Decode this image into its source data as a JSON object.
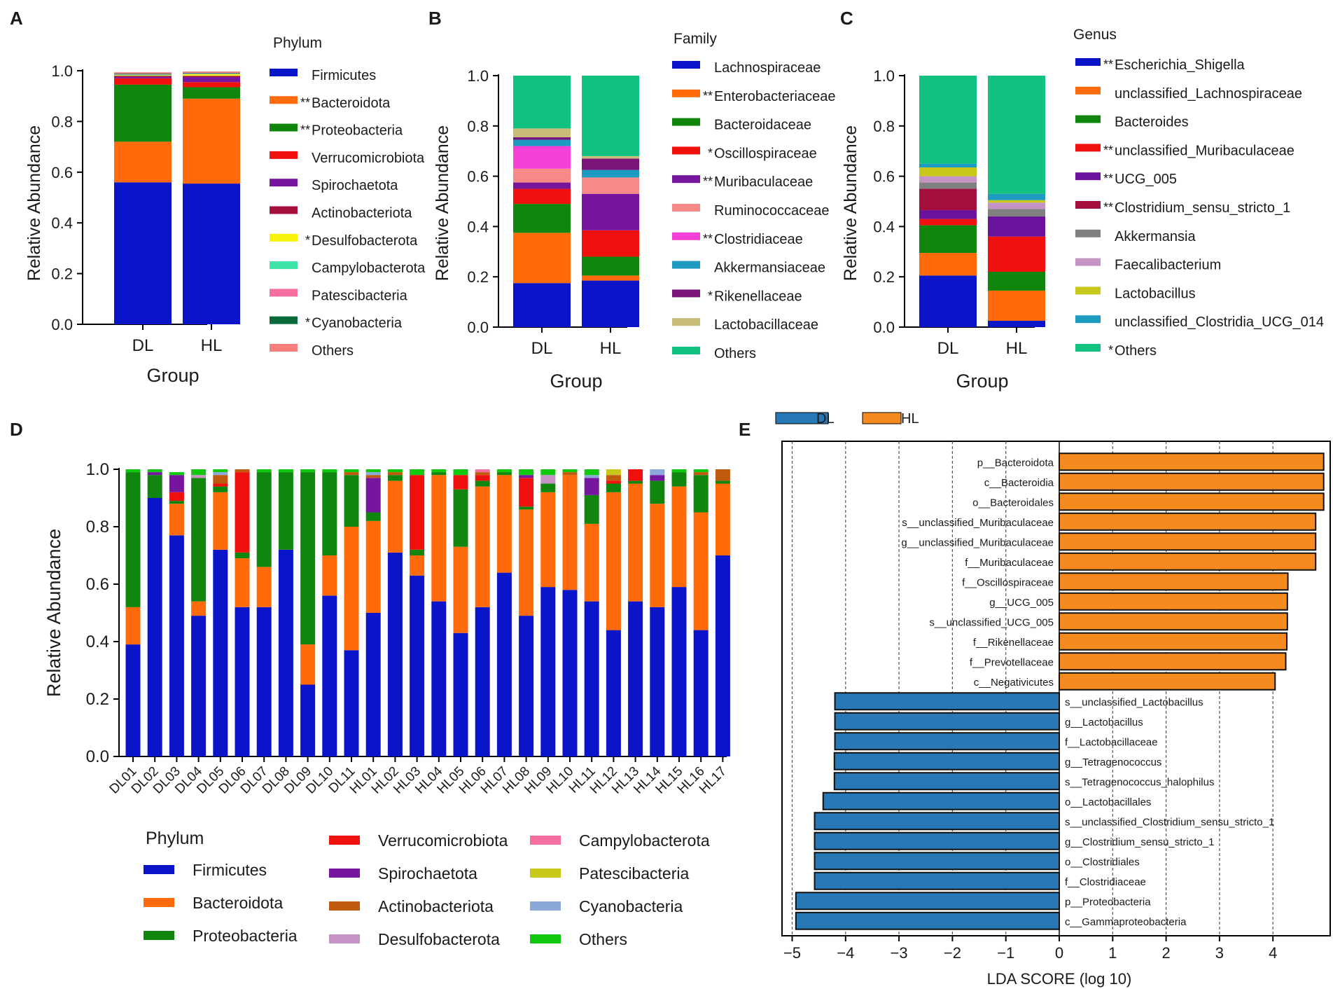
{
  "panels": {
    "A": {
      "letter": "A",
      "legend_title": "Phylum",
      "ylabel": "Relative Abundance",
      "xlabel": "Group"
    },
    "B": {
      "letter": "B",
      "legend_title": "Family",
      "ylabel": "Relative Abundance",
      "xlabel": "Group"
    },
    "C": {
      "letter": "C",
      "legend_title": "Genus",
      "ylabel": "Relative Abundance",
      "xlabel": "Group"
    },
    "D": {
      "letter": "D",
      "legend_title": "Phylum",
      "ylabel": "Relative Abundance"
    },
    "E": {
      "letter": "E",
      "legend": [
        {
          "name": "DL",
          "color": "#2878b5"
        },
        {
          "name": "HL",
          "color": "#f58a1f"
        }
      ],
      "xlabel": "LDA SCORE (log 10)"
    }
  },
  "chart_data": [
    {
      "id": "A",
      "type": "bar",
      "stacked": true,
      "categories": [
        "DL",
        "HL"
      ],
      "ylim": [
        0,
        1.0
      ],
      "yticks": [
        "0.0",
        "0.2",
        "0.4",
        "0.6",
        "0.8",
        "1.0"
      ],
      "series": [
        {
          "name": "Firmicutes",
          "marker": "",
          "color": "#0a14c8",
          "values": [
            0.56,
            0.555
          ]
        },
        {
          "name": "Bacteroidota",
          "marker": "**",
          "color": "#ff6a0a",
          "values": [
            0.16,
            0.335
          ]
        },
        {
          "name": "Proteobacteria",
          "marker": "**",
          "color": "#10860f",
          "values": [
            0.225,
            0.045
          ]
        },
        {
          "name": "Verrucomicrobiota",
          "marker": "",
          "color": "#f0100e",
          "values": [
            0.025,
            0.02
          ]
        },
        {
          "name": "Spirochaetota",
          "marker": "",
          "color": "#76169e",
          "values": [
            0.005,
            0.02
          ]
        },
        {
          "name": "Actinobacteriota",
          "marker": "",
          "color": "#a50f3c",
          "values": [
            0.005,
            0.005
          ]
        },
        {
          "name": "Desulfobacterota",
          "marker": "*",
          "color": "#f7f20a",
          "values": [
            0.002,
            0.006
          ]
        },
        {
          "name": "Campylobacterota",
          "marker": "",
          "color": "#3ee3a8",
          "values": [
            0.003,
            0.002
          ]
        },
        {
          "name": "Patescibacteria",
          "marker": "",
          "color": "#f76ea0",
          "values": [
            0.002,
            0.002
          ]
        },
        {
          "name": "Cyanobacteria",
          "marker": "*",
          "color": "#0a6b3a",
          "values": [
            0.002,
            0.002
          ]
        },
        {
          "name": "Others",
          "marker": "",
          "color": "#f57f7d",
          "values": [
            0.005,
            0.005
          ]
        }
      ]
    },
    {
      "id": "B",
      "type": "bar",
      "stacked": true,
      "categories": [
        "DL",
        "HL"
      ],
      "ylim": [
        0,
        1.0
      ],
      "yticks": [
        "0.0",
        "0.2",
        "0.4",
        "0.6",
        "0.8",
        "1.0"
      ],
      "series": [
        {
          "name": "Lachnospiraceae",
          "marker": "",
          "color": "#0a14c8",
          "values": [
            0.175,
            0.185
          ]
        },
        {
          "name": "Enterobacteriaceae",
          "marker": "**",
          "color": "#ff6a0a",
          "values": [
            0.2,
            0.02
          ]
        },
        {
          "name": "Bacteroidaceae",
          "marker": "",
          "color": "#10860f",
          "values": [
            0.115,
            0.075
          ]
        },
        {
          "name": "Oscillospiraceae",
          "marker": "*",
          "color": "#f0100e",
          "values": [
            0.06,
            0.105
          ]
        },
        {
          "name": "Muribaculaceae",
          "marker": "**",
          "color": "#76169e",
          "values": [
            0.025,
            0.145
          ]
        },
        {
          "name": "Ruminococcaceae",
          "marker": "",
          "color": "#f78a87",
          "values": [
            0.055,
            0.065
          ]
        },
        {
          "name": "Clostridiaceae",
          "marker": "**",
          "color": "#f540d8",
          "values": [
            0.09,
            0.0
          ]
        },
        {
          "name": "Akkermansiaceae",
          "marker": "",
          "color": "#1e9bc0",
          "values": [
            0.025,
            0.03
          ]
        },
        {
          "name": "Rikenellaceae",
          "marker": "*",
          "color": "#7a157a",
          "values": [
            0.01,
            0.045
          ]
        },
        {
          "name": "Lactobacillaceae",
          "marker": "",
          "color": "#c7bc78",
          "values": [
            0.035,
            0.01
          ]
        },
        {
          "name": "Others",
          "marker": "",
          "color": "#12c080",
          "values": [
            0.21,
            0.32
          ]
        }
      ]
    },
    {
      "id": "C",
      "type": "bar",
      "stacked": true,
      "categories": [
        "DL",
        "HL"
      ],
      "ylim": [
        0,
        1.0
      ],
      "yticks": [
        "0.0",
        "0.2",
        "0.4",
        "0.6",
        "0.8",
        "1.0"
      ],
      "series": [
        {
          "name": "Escherichia_Shigella",
          "marker": "**",
          "color": "#0a14c8",
          "values": [
            0.205,
            0.025
          ]
        },
        {
          "name": "unclassified_Lachnospiraceae",
          "marker": "",
          "color": "#ff6a0a",
          "values": [
            0.09,
            0.12
          ]
        },
        {
          "name": "Bacteroides",
          "marker": "",
          "color": "#10860f",
          "values": [
            0.11,
            0.075
          ]
        },
        {
          "name": "unclassified_Muribaculaceae",
          "marker": "**",
          "color": "#f0100e",
          "values": [
            0.025,
            0.14
          ]
        },
        {
          "name": "UCG_005",
          "marker": "**",
          "color": "#6a129e",
          "values": [
            0.035,
            0.08
          ]
        },
        {
          "name": "Clostridium_sensu_stricto_1",
          "marker": "**",
          "color": "#a50f3c",
          "values": [
            0.085,
            0.0
          ]
        },
        {
          "name": "Akkermansia",
          "marker": "",
          "color": "#808080",
          "values": [
            0.025,
            0.03
          ]
        },
        {
          "name": "Faecalibacterium",
          "marker": "",
          "color": "#c594c5",
          "values": [
            0.025,
            0.025
          ]
        },
        {
          "name": "Lactobacillus",
          "marker": "",
          "color": "#c8c81a",
          "values": [
            0.035,
            0.01
          ]
        },
        {
          "name": "unclassified_Clostridia_UCG_014",
          "marker": "",
          "color": "#1e9bc0",
          "values": [
            0.015,
            0.025
          ]
        },
        {
          "name": "Others",
          "marker": "*",
          "color": "#12c080",
          "values": [
            0.35,
            0.47
          ]
        }
      ]
    },
    {
      "id": "D",
      "type": "bar",
      "stacked": true,
      "categories": [
        "DL01",
        "DL02",
        "DL03",
        "DL04",
        "DL05",
        "DL06",
        "DL07",
        "DL08",
        "DL09",
        "DL10",
        "DL11",
        "HL01",
        "HL02",
        "HL03",
        "HL04",
        "HL05",
        "HL06",
        "HL07",
        "HL08",
        "HL09",
        "HL10",
        "HL11",
        "HL12",
        "HL13",
        "HL14",
        "HL15",
        "HL16",
        "HL17"
      ],
      "ylim": [
        0,
        1.0
      ],
      "yticks": [
        "0.0",
        "0.2",
        "0.4",
        "0.6",
        "0.8",
        "1.0"
      ],
      "series": [
        {
          "name": "Firmicutes",
          "color": "#0a14c8",
          "values": [
            0.39,
            0.9,
            0.77,
            0.49,
            0.72,
            0.52,
            0.52,
            0.72,
            0.25,
            0.56,
            0.37,
            0.5,
            0.71,
            0.63,
            0.54,
            0.43,
            0.52,
            0.64,
            0.49,
            0.59,
            0.58,
            0.54,
            0.44,
            0.54,
            0.52,
            0.59,
            0.44,
            0.7
          ]
        },
        {
          "name": "Bacteroidota",
          "color": "#ff6a0a",
          "values": [
            0.13,
            0.0,
            0.11,
            0.05,
            0.2,
            0.17,
            0.14,
            0.0,
            0.14,
            0.14,
            0.43,
            0.32,
            0.25,
            0.07,
            0.44,
            0.3,
            0.42,
            0.34,
            0.37,
            0.33,
            0.4,
            0.27,
            0.48,
            0.41,
            0.36,
            0.35,
            0.41,
            0.25
          ]
        },
        {
          "name": "Proteobacteria",
          "color": "#10860f",
          "values": [
            0.47,
            0.08,
            0.01,
            0.43,
            0.02,
            0.02,
            0.33,
            0.27,
            0.6,
            0.29,
            0.18,
            0.03,
            0.02,
            0.02,
            0.01,
            0.2,
            0.02,
            0.01,
            0.01,
            0.03,
            0.0,
            0.1,
            0.03,
            0.01,
            0.08,
            0.05,
            0.13,
            0.01
          ]
        },
        {
          "name": "Verrucomicrobiota",
          "color": "#f0100e",
          "values": [
            0.0,
            0.0,
            0.03,
            0.0,
            0.01,
            0.28,
            0.0,
            0.0,
            0.0,
            0.0,
            0.0,
            0.0,
            0.0,
            0.26,
            0.0,
            0.05,
            0.02,
            0.0,
            0.1,
            0.0,
            0.0,
            0.0,
            0.01,
            0.04,
            0.0,
            0.0,
            0.0,
            0.0
          ]
        },
        {
          "name": "Spirochaetota",
          "color": "#76169e",
          "values": [
            0.0,
            0.01,
            0.06,
            0.0,
            0.0,
            0.0,
            0.0,
            0.0,
            0.0,
            0.0,
            0.0,
            0.12,
            0.0,
            0.0,
            0.0,
            0.0,
            0.0,
            0.0,
            0.01,
            0.0,
            0.0,
            0.06,
            0.0,
            0.0,
            0.02,
            0.0,
            0.0,
            0.0
          ]
        },
        {
          "name": "Actinobacteriota",
          "color": "#c05a0f",
          "values": [
            0.0,
            0.0,
            0.0,
            0.0,
            0.03,
            0.01,
            0.0,
            0.0,
            0.0,
            0.0,
            0.01,
            0.01,
            0.01,
            0.0,
            0.0,
            0.0,
            0.01,
            0.0,
            0.0,
            0.0,
            0.01,
            0.0,
            0.02,
            0.0,
            0.0,
            0.0,
            0.01,
            0.04
          ]
        },
        {
          "name": "Desulfobacterota",
          "color": "#c594c5",
          "values": [
            0.0,
            0.0,
            0.0,
            0.01,
            0.0,
            0.0,
            0.0,
            0.0,
            0.0,
            0.0,
            0.0,
            0.0,
            0.0,
            0.0,
            0.0,
            0.0,
            0.0,
            0.0,
            0.0,
            0.03,
            0.0,
            0.0,
            0.0,
            0.0,
            0.0,
            0.0,
            0.0,
            0.0
          ]
        },
        {
          "name": "Campylobacterota",
          "color": "#f76ea0",
          "values": [
            0.0,
            0.0,
            0.0,
            0.0,
            0.0,
            0.0,
            0.0,
            0.0,
            0.0,
            0.0,
            0.0,
            0.0,
            0.0,
            0.0,
            0.0,
            0.0,
            0.02,
            0.0,
            0.0,
            0.0,
            0.0,
            0.0,
            0.0,
            0.0,
            0.0,
            0.0,
            0.0,
            0.0
          ]
        },
        {
          "name": "Patescibacteria",
          "color": "#c8c81a",
          "values": [
            0.0,
            0.0,
            0.0,
            0.0,
            0.0,
            0.0,
            0.0,
            0.0,
            0.0,
            0.0,
            0.0,
            0.0,
            0.0,
            0.0,
            0.0,
            0.0,
            0.0,
            0.0,
            0.0,
            0.0,
            0.0,
            0.0,
            0.02,
            0.0,
            0.0,
            0.0,
            0.0,
            0.0
          ]
        },
        {
          "name": "Cyanobacteria",
          "color": "#8aa8d8",
          "values": [
            0.0,
            0.0,
            0.0,
            0.0,
            0.01,
            0.0,
            0.0,
            0.0,
            0.0,
            0.0,
            0.0,
            0.01,
            0.0,
            0.0,
            0.0,
            0.0,
            0.0,
            0.0,
            0.0,
            0.0,
            0.0,
            0.01,
            0.0,
            0.0,
            0.02,
            0.0,
            0.0,
            0.0
          ]
        },
        {
          "name": "Others",
          "color": "#10c810",
          "values": [
            0.01,
            0.01,
            0.01,
            0.02,
            0.01,
            0.0,
            0.01,
            0.01,
            0.01,
            0.01,
            0.01,
            0.01,
            0.01,
            0.02,
            0.01,
            0.02,
            0.0,
            0.01,
            0.02,
            0.02,
            0.01,
            0.02,
            0.0,
            0.0,
            0.0,
            0.01,
            0.01,
            0.0
          ]
        }
      ]
    },
    {
      "id": "E",
      "type": "bar",
      "orientation": "horizontal",
      "xlim": [
        -5,
        5
      ],
      "xticks": [
        "−5",
        "−4",
        "−3",
        "−2",
        "−1",
        "0",
        "1",
        "2",
        "3",
        "4"
      ],
      "xlabel": "LDA SCORE (log 10)",
      "bars": [
        {
          "label": "p__Bacteroidota",
          "group": "HL",
          "value": 4.95
        },
        {
          "label": "c__Bacteroidia",
          "group": "HL",
          "value": 4.95
        },
        {
          "label": "o__Bacteroidales",
          "group": "HL",
          "value": 4.95
        },
        {
          "label": "s__unclassified_Muribaculaceae",
          "group": "HL",
          "value": 4.8
        },
        {
          "label": "g__unclassified_Muribaculaceae",
          "group": "HL",
          "value": 4.8
        },
        {
          "label": "f__Muribaculaceae",
          "group": "HL",
          "value": 4.8
        },
        {
          "label": "f__Oscillospiraceae",
          "group": "HL",
          "value": 4.28
        },
        {
          "label": "g__UCG_005",
          "group": "HL",
          "value": 4.27
        },
        {
          "label": "s__unclassified_UCG_005",
          "group": "HL",
          "value": 4.27
        },
        {
          "label": "f__Rikenellaceae",
          "group": "HL",
          "value": 4.26
        },
        {
          "label": "f__Prevotellaceae",
          "group": "HL",
          "value": 4.24
        },
        {
          "label": "c__Negativicutes",
          "group": "HL",
          "value": 4.04
        },
        {
          "label": "s__unclassified_Lactobacillus",
          "group": "DL",
          "value": -4.2
        },
        {
          "label": "g__Lactobacillus",
          "group": "DL",
          "value": -4.2
        },
        {
          "label": "f__Lactobacillaceae",
          "group": "DL",
          "value": -4.2
        },
        {
          "label": "g__Tetragenococcus",
          "group": "DL",
          "value": -4.21
        },
        {
          "label": "s__Tetragenococcus_halophilus",
          "group": "DL",
          "value": -4.21
        },
        {
          "label": "o__Lactobacillales",
          "group": "DL",
          "value": -4.42
        },
        {
          "label": "s__unclassified_Clostridium_sensu_stricto_1",
          "group": "DL",
          "value": -4.58
        },
        {
          "label": "g__Clostridium_sensu_stricto_1",
          "group": "DL",
          "value": -4.58
        },
        {
          "label": "o__Clostridiales",
          "group": "DL",
          "value": -4.58
        },
        {
          "label": "f__Clostridiaceae",
          "group": "DL",
          "value": -4.58
        },
        {
          "label": "p__Proteobacteria",
          "group": "DL",
          "value": -4.93
        },
        {
          "label": "c__Gammaproteobacteria",
          "group": "DL",
          "value": -4.93
        }
      ]
    }
  ]
}
